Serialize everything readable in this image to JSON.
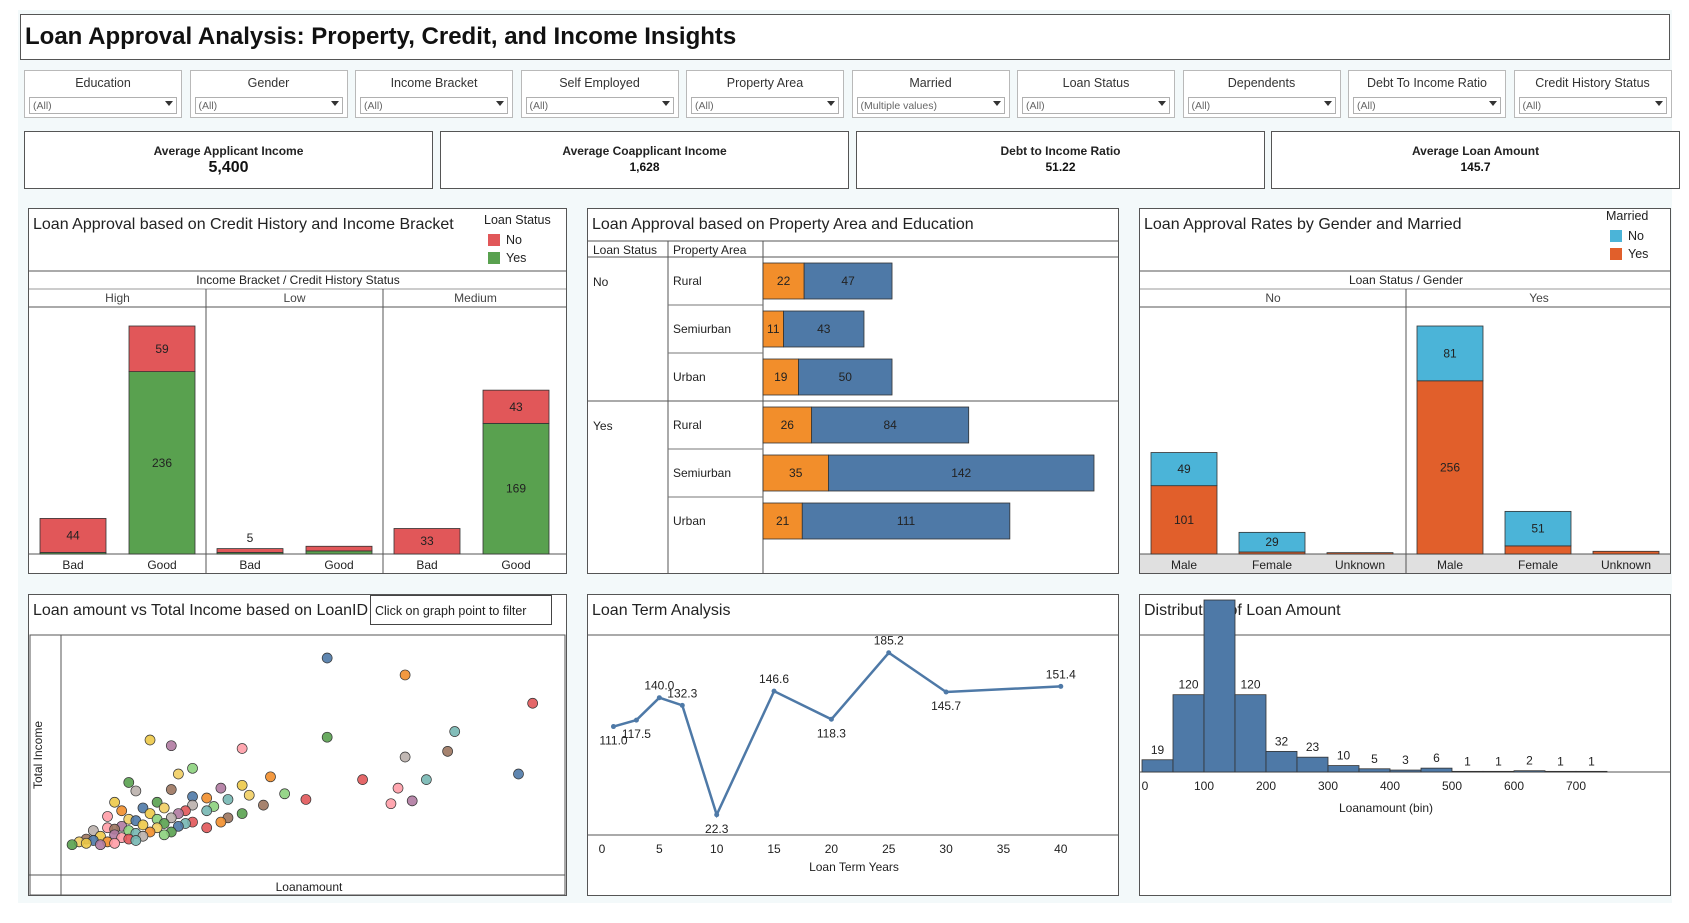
{
  "title": "Loan Approval Analysis: Property, Credit, and Income Insights",
  "filters": [
    {
      "label": "Education",
      "value": "(All)"
    },
    {
      "label": "Gender",
      "value": "(All)"
    },
    {
      "label": "Income Bracket",
      "value": "(All)"
    },
    {
      "label": "Self Employed",
      "value": "(All)"
    },
    {
      "label": "Property Area",
      "value": "(All)"
    },
    {
      "label": "Married",
      "value": "(Multiple values)"
    },
    {
      "label": "Loan Status",
      "value": "(All)"
    },
    {
      "label": "Dependents",
      "value": "(All)"
    },
    {
      "label": "Debt To Income Ratio",
      "value": "(All)"
    },
    {
      "label": "Credit History Status",
      "value": "(All)"
    }
  ],
  "kpis": [
    {
      "label": "Average Applicant Income",
      "value": "5,400"
    },
    {
      "label": "Average Coapplicant Income",
      "value": "1,628"
    },
    {
      "label": "Debt to Income Ratio",
      "value": "51.22"
    },
    {
      "label": "Average Loan Amount",
      "value": "145.7"
    }
  ],
  "tip": "Click on graph point to filter",
  "colors": {
    "no_red": "#e15759",
    "yes_green": "#59a14f",
    "orange": "#f28e2b",
    "blue": "#4e79a7",
    "light_blue": "#4bb4d8",
    "dark_orange": "#e15f2b"
  },
  "chart_data": [
    {
      "type": "bar",
      "title": "Loan Approval based on Credit History and Income Bracket",
      "header": "Income Bracket / Credit History Status",
      "legend": {
        "title": "Loan Status",
        "items": [
          "No",
          "Yes"
        ],
        "colors": [
          "#e15759",
          "#59a14f"
        ]
      },
      "groups": [
        "High",
        "Low",
        "Medium"
      ],
      "categories": [
        "Bad",
        "Good"
      ],
      "series": [
        {
          "name": "No",
          "values": [
            [
              44,
              59
            ],
            [
              5,
              6
            ],
            [
              33,
              43
            ]
          ]
        },
        {
          "name": "Yes",
          "values": [
            [
              2,
              236
            ],
            [
              2,
              4
            ],
            [
              0,
              169
            ]
          ]
        }
      ],
      "labels": [
        [
          [
            "44",
            ""
          ],
          [
            "59",
            "236"
          ]
        ],
        [
          [
            "5",
            ""
          ],
          [
            "",
            ""
          ]
        ],
        [
          [
            "33",
            ""
          ],
          [
            "43",
            "169"
          ]
        ]
      ]
    },
    {
      "type": "bar",
      "title": "Loan Approval based on Property Area and Education",
      "col_headers": [
        "Loan Status",
        "Property Area"
      ],
      "groups": [
        "No",
        "Yes"
      ],
      "categories": [
        "Rural",
        "Semiurban",
        "Urban"
      ],
      "series": [
        {
          "color": "#f28e2b",
          "values": [
            [
              22,
              11,
              19
            ],
            [
              26,
              35,
              21
            ]
          ]
        },
        {
          "color": "#4e79a7",
          "values": [
            [
              47,
              43,
              50
            ],
            [
              84,
              142,
              111
            ]
          ]
        }
      ]
    },
    {
      "type": "bar",
      "title": "Loan Approval Rates by Gender and Married",
      "header": "Loan Status / Gender",
      "legend": {
        "title": "Married",
        "items": [
          "No",
          "Yes"
        ],
        "colors": [
          "#4bb4d8",
          "#e15f2b"
        ]
      },
      "groups": [
        "No",
        "Yes"
      ],
      "categories": [
        "Male",
        "Female",
        "Unknown"
      ],
      "series": [
        {
          "name": "No",
          "values": [
            [
              49,
              29,
              0
            ],
            [
              81,
              51,
              0
            ]
          ]
        },
        {
          "name": "Yes",
          "values": [
            [
              101,
              3,
              2
            ],
            [
              256,
              12,
              4
            ]
          ]
        }
      ],
      "labels": [
        [
          [
            "49",
            "101"
          ],
          [
            "29",
            ""
          ],
          [
            "",
            ""
          ]
        ],
        [
          [
            "81",
            "256"
          ],
          [
            "51",
            ""
          ],
          [
            "",
            ""
          ]
        ]
      ]
    },
    {
      "type": "scatter",
      "title": "Loan amount vs Total Income based on LoanID",
      "xlabel": "Loanamount",
      "ylabel": "Total Income",
      "xlim": [
        0,
        700
      ],
      "ylim": [
        0,
        82000
      ],
      "points": [
        [
          370,
          76000
        ],
        [
          480,
          70000
        ],
        [
          660,
          60000
        ],
        [
          550,
          50000
        ],
        [
          370,
          48000
        ],
        [
          120,
          47000
        ],
        [
          150,
          45000
        ],
        [
          250,
          44000
        ],
        [
          540,
          43000
        ],
        [
          480,
          41000
        ],
        [
          180,
          37000
        ],
        [
          160,
          35000
        ],
        [
          640,
          35000
        ],
        [
          290,
          34000
        ],
        [
          420,
          33000
        ],
        [
          510,
          33000
        ],
        [
          90,
          32000
        ],
        [
          250,
          31000
        ],
        [
          220,
          30000
        ],
        [
          470,
          30000
        ],
        [
          150,
          29500
        ],
        [
          100,
          29000
        ],
        [
          310,
          28000
        ],
        [
          260,
          27500
        ],
        [
          180,
          27000
        ],
        [
          200,
          26500
        ],
        [
          340,
          26000
        ],
        [
          230,
          26000
        ],
        [
          130,
          25000
        ],
        [
          70,
          25000
        ],
        [
          490,
          25500
        ],
        [
          460,
          24500
        ],
        [
          280,
          24000
        ],
        [
          180,
          24000
        ],
        [
          210,
          23500
        ],
        [
          140,
          23000
        ],
        [
          110,
          23000
        ],
        [
          80,
          22000
        ],
        [
          170,
          22000
        ],
        [
          200,
          22000
        ],
        [
          250,
          21000
        ],
        [
          120,
          21000
        ],
        [
          160,
          21000
        ],
        [
          60,
          20000
        ],
        [
          230,
          19500
        ],
        [
          150,
          19500
        ],
        [
          130,
          19000
        ],
        [
          90,
          19000
        ],
        [
          100,
          18500
        ],
        [
          220,
          18000
        ],
        [
          180,
          18000
        ],
        [
          170,
          17500
        ],
        [
          140,
          17500
        ],
        [
          110,
          17000
        ],
        [
          80,
          16500
        ],
        [
          60,
          16000
        ],
        [
          70,
          15500
        ],
        [
          40,
          15000
        ],
        [
          90,
          15000
        ],
        [
          130,
          16000
        ],
        [
          160,
          16500
        ],
        [
          120,
          14500
        ],
        [
          200,
          16000
        ],
        [
          100,
          14000
        ],
        [
          150,
          14500
        ],
        [
          50,
          13000
        ],
        [
          70,
          13500
        ],
        [
          80,
          12500
        ],
        [
          30,
          12000
        ],
        [
          110,
          13000
        ],
        [
          140,
          13500
        ],
        [
          20,
          11000
        ],
        [
          40,
          11500
        ],
        [
          60,
          11000
        ],
        [
          90,
          12000
        ],
        [
          100,
          11500
        ],
        [
          10,
          10000
        ],
        [
          30,
          10500
        ],
        [
          50,
          10000
        ],
        [
          70,
          10500
        ]
      ]
    },
    {
      "type": "line",
      "title": "Loan Term Analysis",
      "xlabel": "Loan Term Years",
      "xticks": [
        0,
        5,
        10,
        15,
        20,
        25,
        30,
        35,
        40
      ],
      "xlim": [
        0,
        41.5
      ],
      "ylim": [
        10,
        195
      ],
      "x": [
        1,
        3,
        5,
        7,
        10,
        15,
        20,
        25,
        30,
        40
      ],
      "y": [
        111.0,
        117.5,
        140.0,
        132.3,
        22.3,
        146.6,
        118.3,
        185.2,
        145.7,
        151.4
      ],
      "labels": [
        "111.0",
        "117.5",
        "140.0",
        "132.3",
        "22.3",
        "146.6",
        "118.3",
        "185.2",
        "145.7",
        "151.4"
      ]
    },
    {
      "type": "bar",
      "title": "Distribution of Loan Amount",
      "xlabel": "Loanamount (bin)",
      "xticks": [
        "0",
        "100",
        "200",
        "300",
        "400",
        "500",
        "600",
        "700"
      ],
      "bin_width": 50,
      "bins": [
        0,
        50,
        100,
        150,
        200,
        250,
        300,
        350,
        400,
        450,
        500,
        550,
        600,
        650,
        700
      ],
      "values": [
        19,
        120,
        267,
        120,
        32,
        23,
        10,
        5,
        3,
        6,
        1,
        1,
        2,
        1,
        1
      ]
    }
  ]
}
